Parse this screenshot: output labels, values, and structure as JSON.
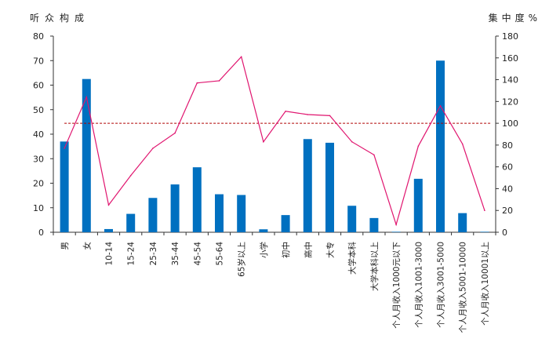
{
  "chart_data": {
    "type": "bar",
    "y_left_title": "听众构成",
    "y_right_title": "集中度%",
    "categories": [
      "男",
      "女",
      "10-14",
      "15-24",
      "25-34",
      "35-44",
      "45-54",
      "55-64",
      "65岁以上",
      "小学",
      "初中",
      "高中",
      "大专",
      "大学本科",
      "大学本科以上",
      "个人月收入1000元以下",
      "个人月收入1001-3000",
      "个人月收入3001-5000",
      "个人月收入5001-10000",
      "个人月收入10001以上"
    ],
    "series": [
      {
        "type": "bar",
        "axis": "left",
        "color": "#0070C0",
        "values": [
          37,
          62.5,
          1.3,
          7.5,
          14,
          19.5,
          26.5,
          15.5,
          15.2,
          1.2,
          7,
          38,
          36.5,
          10.8,
          5.8,
          0.2,
          21.8,
          70,
          7.8,
          0.2
        ]
      },
      {
        "type": "line",
        "axis": "right",
        "color": "#E0156F",
        "values": [
          77,
          124,
          25,
          52,
          77,
          91,
          137,
          139,
          161,
          83,
          111,
          108,
          107,
          83,
          71,
          7,
          79,
          116,
          81,
          20
        ]
      },
      {
        "type": "reference-line",
        "axis": "right",
        "color": "#B00000",
        "style": "dashed",
        "value": 100
      }
    ],
    "y_left": {
      "min": 0,
      "max": 80,
      "step": 10
    },
    "y_right": {
      "min": 0,
      "max": 180,
      "step": 20
    },
    "grid": false
  }
}
